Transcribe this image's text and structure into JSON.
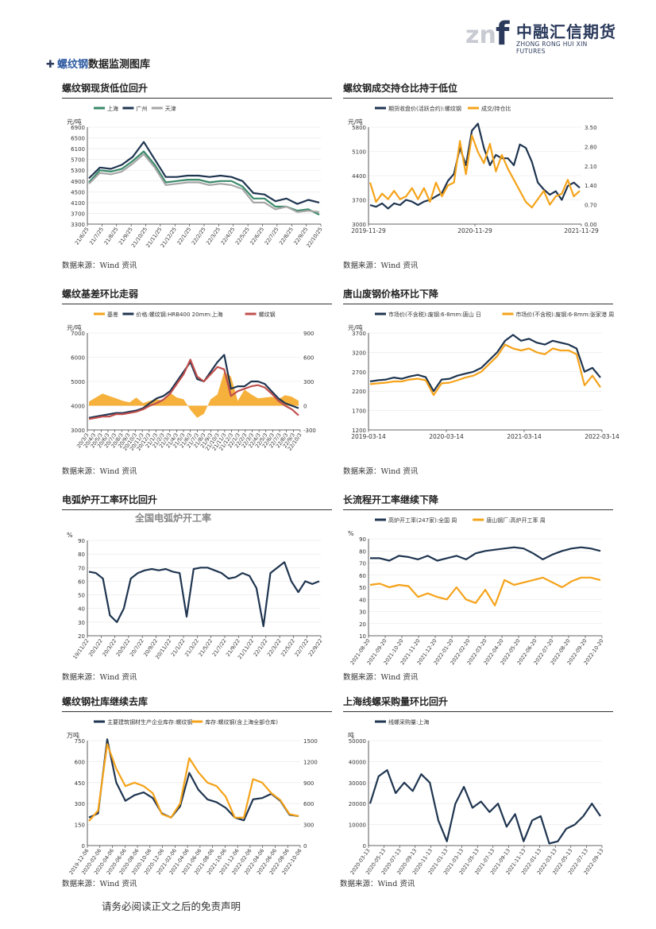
{
  "header": {
    "logo_mark": "znf",
    "logo_cn": "中融汇信期货",
    "logo_en": "ZHONG RONG HUI XIN FUTURES"
  },
  "section": {
    "title_highlight": "螺纹钢",
    "title_rest": "数据监测图库",
    "bullet_icon": "plus-bullet-icon"
  },
  "source_text": "数据来源：Wind 资讯",
  "footer": "请务必阅读正文之后的免责声明",
  "colors": {
    "navy": "#1f3550",
    "orange": "#f5a31a",
    "green": "#3a8a6a",
    "gray": "#a6a6a6",
    "red": "#c0504d"
  },
  "panels": [
    {
      "title": "螺纹钢现货低位回升",
      "chart_data": {
        "type": "line",
        "ylabel": "元/吨",
        "yticks": [
          "6900",
          "6500",
          "6100",
          "5700",
          "5300",
          "4900",
          "4500",
          "4100",
          "3700",
          "3300"
        ],
        "ylim": [
          3300,
          6900
        ],
        "xticks": [
          "21/6/25",
          "21/7/25",
          "21/8/25",
          "21/9/25",
          "21/10/25",
          "21/11/25",
          "21/12/25",
          "22/1/25",
          "22/2/25",
          "22/3/25",
          "22/4/25",
          "22/5/25",
          "22/6/25",
          "22/7/25",
          "22/8/25",
          "22/9/25",
          "22/10/25"
        ],
        "series": [
          {
            "name": "上海",
            "color": "#3a8a6a",
            "values": [
              4850,
              5300,
              5250,
              5350,
              5650,
              6000,
              5500,
              4850,
              4900,
              4950,
              4950,
              4850,
              4900,
              4900,
              4700,
              4250,
              4250,
              3950,
              3950,
              3800,
              3850,
              3650
            ]
          },
          {
            "name": "广州",
            "color": "#1f3550",
            "values": [
              5000,
              5400,
              5350,
              5500,
              5800,
              6350,
              5700,
              5050,
              5050,
              5100,
              5100,
              5050,
              5100,
              5050,
              4900,
              4450,
              4400,
              4150,
              4250,
              4050,
              4200,
              4100
            ]
          },
          {
            "name": "天津",
            "color": "#a6a6a6",
            "values": [
              4800,
              5200,
              5150,
              5250,
              5550,
              5900,
              5400,
              4750,
              4800,
              4850,
              4850,
              4750,
              4800,
              4750,
              4600,
              4100,
              4100,
              3850,
              3950,
              3750,
              3800,
              3750
            ]
          }
        ]
      }
    },
    {
      "title": "螺纹钢成交持仓比持于低位",
      "chart_data": {
        "type": "line",
        "ylabel": "元/吨",
        "yticks_left": [
          "5800",
          "5100",
          "4400",
          "3700",
          "3000"
        ],
        "yticks_right": [
          "3.50",
          "2.80",
          "2.10",
          "1.40",
          "0.70",
          "0.00"
        ],
        "ylim": [
          3000,
          5800
        ],
        "ylim_right": [
          0,
          3.5
        ],
        "xticks": [
          "2019-11-29",
          "2020-11-29",
          "2021-11-29"
        ],
        "series": [
          {
            "name": "期货收盘价(活跃合约):螺纹钢",
            "color": "#1f3550",
            "axis": "left",
            "values": [
              3550,
              3500,
              3600,
              3450,
              3600,
              3550,
              3700,
              3650,
              3550,
              3650,
              3700,
              3800,
              3900,
              4250,
              4450,
              5200,
              4700,
              5700,
              5900,
              5200,
              4700,
              5000,
              4900,
              4900,
              4700,
              5300,
              5200,
              4800,
              4200,
              4000,
              3850,
              3950,
              3700,
              4100,
              4200,
              4050
            ]
          },
          {
            "name": "成交/持仓比",
            "color": "#f5a31a",
            "axis": "right",
            "values": [
              1.5,
              0.8,
              1.1,
              0.9,
              1.2,
              0.9,
              1.0,
              1.3,
              0.9,
              1.3,
              0.8,
              1.5,
              1.0,
              1.4,
              1.5,
              3.0,
              1.8,
              3.2,
              2.6,
              2.2,
              2.9,
              1.9,
              2.5,
              2.0,
              1.6,
              1.2,
              0.8,
              0.6,
              0.9,
              1.2,
              0.7,
              1.0,
              1.1,
              1.6,
              1.0,
              1.2
            ]
          }
        ]
      }
    },
    {
      "title": "螺纹基差环比走弱",
      "chart_data": {
        "type": "line",
        "ylabel": "元/吨",
        "yticks_left": [
          "7000",
          "6000",
          "5000",
          "4000",
          "3000"
        ],
        "yticks_right": [
          "900",
          "600",
          "300",
          "0",
          "-300"
        ],
        "ylim": [
          3000,
          7000
        ],
        "ylim_right": [
          -300,
          900
        ],
        "xticks": [
          "20/3/3",
          "20/4/3",
          "20/5/3",
          "20/6/3",
          "20/7/3",
          "20/8/3",
          "20/9/3",
          "20/10/3",
          "20/11/3",
          "20/12/3",
          "21/1/3",
          "21/2/3",
          "21/3/3",
          "21/4/3",
          "21/5/3",
          "21/6/3",
          "21/7/3",
          "21/8/3",
          "21/9/3",
          "21/10/3",
          "21/11/3",
          "21/12/3",
          "22/1/3",
          "22/2/3",
          "22/3/3",
          "22/4/3",
          "22/5/3",
          "22/6/3",
          "22/7/3",
          "22/8/3",
          "22/9/3",
          "22/10/3"
        ],
        "series": [
          {
            "name": "基差",
            "color": "#f5a31a",
            "axis": "right",
            "kind": "area",
            "values": [
              50,
              100,
              150,
              120,
              90,
              60,
              40,
              100,
              30,
              60,
              80,
              60,
              160,
              100,
              80,
              -50,
              -150,
              -100,
              80,
              140,
              420,
              360,
              60,
              200,
              140,
              90,
              100,
              110,
              80,
              130,
              110,
              60
            ]
          },
          {
            "name": "价格:螺纹钢:HRB400 20mm:上海",
            "color": "#1f3550",
            "axis": "left",
            "values": [
              3500,
              3550,
              3600,
              3650,
              3700,
              3700,
              3750,
              3800,
              3900,
              4100,
              4300,
              4400,
              4600,
              5000,
              5400,
              5800,
              5100,
              5000,
              5400,
              5800,
              6100,
              4700,
              4800,
              4800,
              5000,
              5000,
              4900,
              4600,
              4300,
              4100,
              4000,
              3900
            ]
          },
          {
            "name": "螺纹钢",
            "color": "#c0504d",
            "axis": "left",
            "values": [
              3450,
              3500,
              3550,
              3550,
              3650,
              3650,
              3700,
              3750,
              3850,
              4000,
              4100,
              4250,
              4500,
              4900,
              5300,
              5900,
              5200,
              5000,
              5300,
              5600,
              5500,
              4400,
              4600,
              4700,
              4800,
              4850,
              4750,
              4500,
              4200,
              4000,
              3850,
              3600
            ]
          }
        ]
      }
    },
    {
      "title": "唐山废钢价格环比下降",
      "chart_data": {
        "type": "line",
        "ylabel": "元/吨",
        "yticks": [
          "3700",
          "3200",
          "2700",
          "2200",
          "1700",
          "1200"
        ],
        "ylim": [
          1200,
          3700
        ],
        "xticks": [
          "2019-03-14",
          "2020-03-14",
          "2021-03-14",
          "2022-03-14"
        ],
        "series": [
          {
            "name": "市场价(不含税):废钢:6-8mm:唐山 日",
            "color": "#1f3550",
            "values": [
              2450,
              2480,
              2500,
              2550,
              2520,
              2580,
              2620,
              2560,
              2200,
              2500,
              2520,
              2600,
              2650,
              2700,
              2800,
              3000,
              3200,
              3500,
              3650,
              3500,
              3550,
              3450,
              3400,
              3500,
              3450,
              3400,
              3300,
              2700,
              2800,
              2550
            ]
          },
          {
            "name": "市场价(不含税):废钢:6-8mm:张家港 周",
            "color": "#f5a31a",
            "values": [
              2380,
              2400,
              2420,
              2450,
              2450,
              2500,
              2520,
              2480,
              2100,
              2400,
              2420,
              2480,
              2550,
              2600,
              2700,
              2900,
              3100,
              3400,
              3300,
              3250,
              3300,
              3200,
              3150,
              3300,
              3250,
              3250,
              3150,
              2350,
              2600,
              2300
            ]
          }
        ]
      }
    },
    {
      "title": "电弧炉开工率环比回升",
      "chart_data": {
        "type": "line",
        "title": "全国电弧炉开工率",
        "ylabel": "%",
        "yticks": [
          "90",
          "80",
          "70",
          "60",
          "50",
          "40",
          "30",
          "20"
        ],
        "ylim": [
          20,
          90
        ],
        "xticks": [
          "19/11/22",
          "20/1/22",
          "20/3/22",
          "20/5/22",
          "20/7/22",
          "20/9/22",
          "20/11/22",
          "21/1/22",
          "21/3/22",
          "21/5/22",
          "21/7/22",
          "21/9/22",
          "21/11/22",
          "22/1/22",
          "22/3/22",
          "22/5/22",
          "22/7/22",
          "22/9/22"
        ],
        "series": [
          {
            "name": "全国电弧炉开工率",
            "color": "#1f3550",
            "values": [
              67,
              66,
              62,
              35,
              30,
              40,
              62,
              66,
              68,
              69,
              68,
              69,
              67,
              66,
              34,
              69,
              70,
              70,
              68,
              66,
              62,
              63,
              66,
              64,
              55,
              27,
              66,
              70,
              74,
              60,
              52,
              60,
              58,
              60
            ]
          }
        ]
      }
    },
    {
      "title": "长流程开工率继续下降",
      "chart_data": {
        "type": "line",
        "ylabel": "%",
        "yticks": [
          "90",
          "80",
          "70",
          "60",
          "50",
          "40",
          "30",
          "20",
          "10"
        ],
        "ylim": [
          10,
          90
        ],
        "xticks": [
          "2021-08-20",
          "2021-09-20",
          "2021-10-20",
          "2021-11-20",
          "2021-12-20",
          "2022-01-20",
          "2022-02-20",
          "2022-03-20",
          "2022-04-20",
          "2022-05-20",
          "2022-06-20",
          "2022-07-20",
          "2022-08-20",
          "2022-09-20",
          "2022-10-20"
        ],
        "series": [
          {
            "name": "高炉开工率(247家):全国 周",
            "color": "#1f3550",
            "values": [
              74,
              74,
              72,
              76,
              75,
              73,
              76,
              72,
              74,
              76,
              73,
              78,
              80,
              81,
              82,
              83,
              82,
              78,
              73,
              77,
              80,
              82,
              83,
              82,
              80
            ]
          },
          {
            "name": "唐山钢厂:高炉开工率 周",
            "color": "#f5a31a",
            "values": [
              52,
              53,
              50,
              52,
              51,
              42,
              45,
              42,
              40,
              50,
              40,
              37,
              48,
              35,
              56,
              52,
              54,
              56,
              58,
              54,
              50,
              55,
              58,
              58,
              56
            ]
          }
        ]
      }
    },
    {
      "title": "螺纹钢社库继续去库",
      "chart_data": {
        "type": "line",
        "ylabel": "万吨",
        "yticks_left": [
          "750",
          "600",
          "450",
          "300",
          "150",
          "0"
        ],
        "yticks_right": [
          "1500",
          "1200",
          "900",
          "600",
          "300",
          "0"
        ],
        "ylim": [
          0,
          750
        ],
        "ylim_right": [
          0,
          1500
        ],
        "xticks": [
          "2019-12-06",
          "2020-02-06",
          "2020-04-06",
          "2020-06-06",
          "2020-08-06",
          "2020-10-06",
          "2020-12-06",
          "2021-02-06",
          "2021-04-06",
          "2021-06-06",
          "2021-08-06",
          "2021-10-06",
          "2021-12-06",
          "2022-02-06",
          "2022-04-06",
          "2022-06-06",
          "2022-08-06",
          "2022-10-06"
        ],
        "series": [
          {
            "name": "主要建筑钢材生产企业库存:螺纹钢",
            "color": "#1f3550",
            "axis": "left",
            "values": [
              200,
              230,
              760,
              450,
              320,
              360,
              380,
              340,
              230,
              200,
              280,
              520,
              400,
              330,
              310,
              270,
              200,
              180,
              330,
              340,
              370,
              320,
              220,
              210
            ]
          },
          {
            "name": "库存:螺纹钢(含上海全部仓库)",
            "color": "#f5a31a",
            "axis": "right",
            "values": [
              350,
              500,
              1450,
              1100,
              850,
              900,
              850,
              750,
              450,
              400,
              600,
              1250,
              1050,
              900,
              850,
              700,
              400,
              400,
              950,
              900,
              750,
              650,
              450,
              420
            ]
          }
        ]
      }
    },
    {
      "title": "上海线螺采购量环比回升",
      "chart_data": {
        "type": "line",
        "ylabel": "吨",
        "yticks": [
          "50000",
          "40000",
          "30000",
          "20000",
          "10000",
          "0"
        ],
        "ylim": [
          0,
          50000
        ],
        "xticks": [
          "2020-03-13",
          "2020-05-13",
          "2020-07-13",
          "2020-09-13",
          "2020-11-13",
          "2021-01-13",
          "2021-03-13",
          "2021-05-13",
          "2021-07-13",
          "2021-09-13",
          "2021-11-13",
          "2022-01-13",
          "2022-03-13",
          "2022-05-13",
          "2022-07-13",
          "2022-09-13"
        ],
        "series": [
          {
            "name": "线螺采购量:上海",
            "color": "#1f3550",
            "values": [
              20000,
              33000,
              36000,
              25000,
              30000,
              26000,
              34000,
              30000,
              12000,
              2000,
              20000,
              28000,
              18000,
              21000,
              16000,
              20000,
              9000,
              15000,
              2000,
              12000,
              14000,
              1000,
              2000,
              8000,
              10000,
              14000,
              20000,
              14000
            ]
          }
        ]
      }
    }
  ]
}
